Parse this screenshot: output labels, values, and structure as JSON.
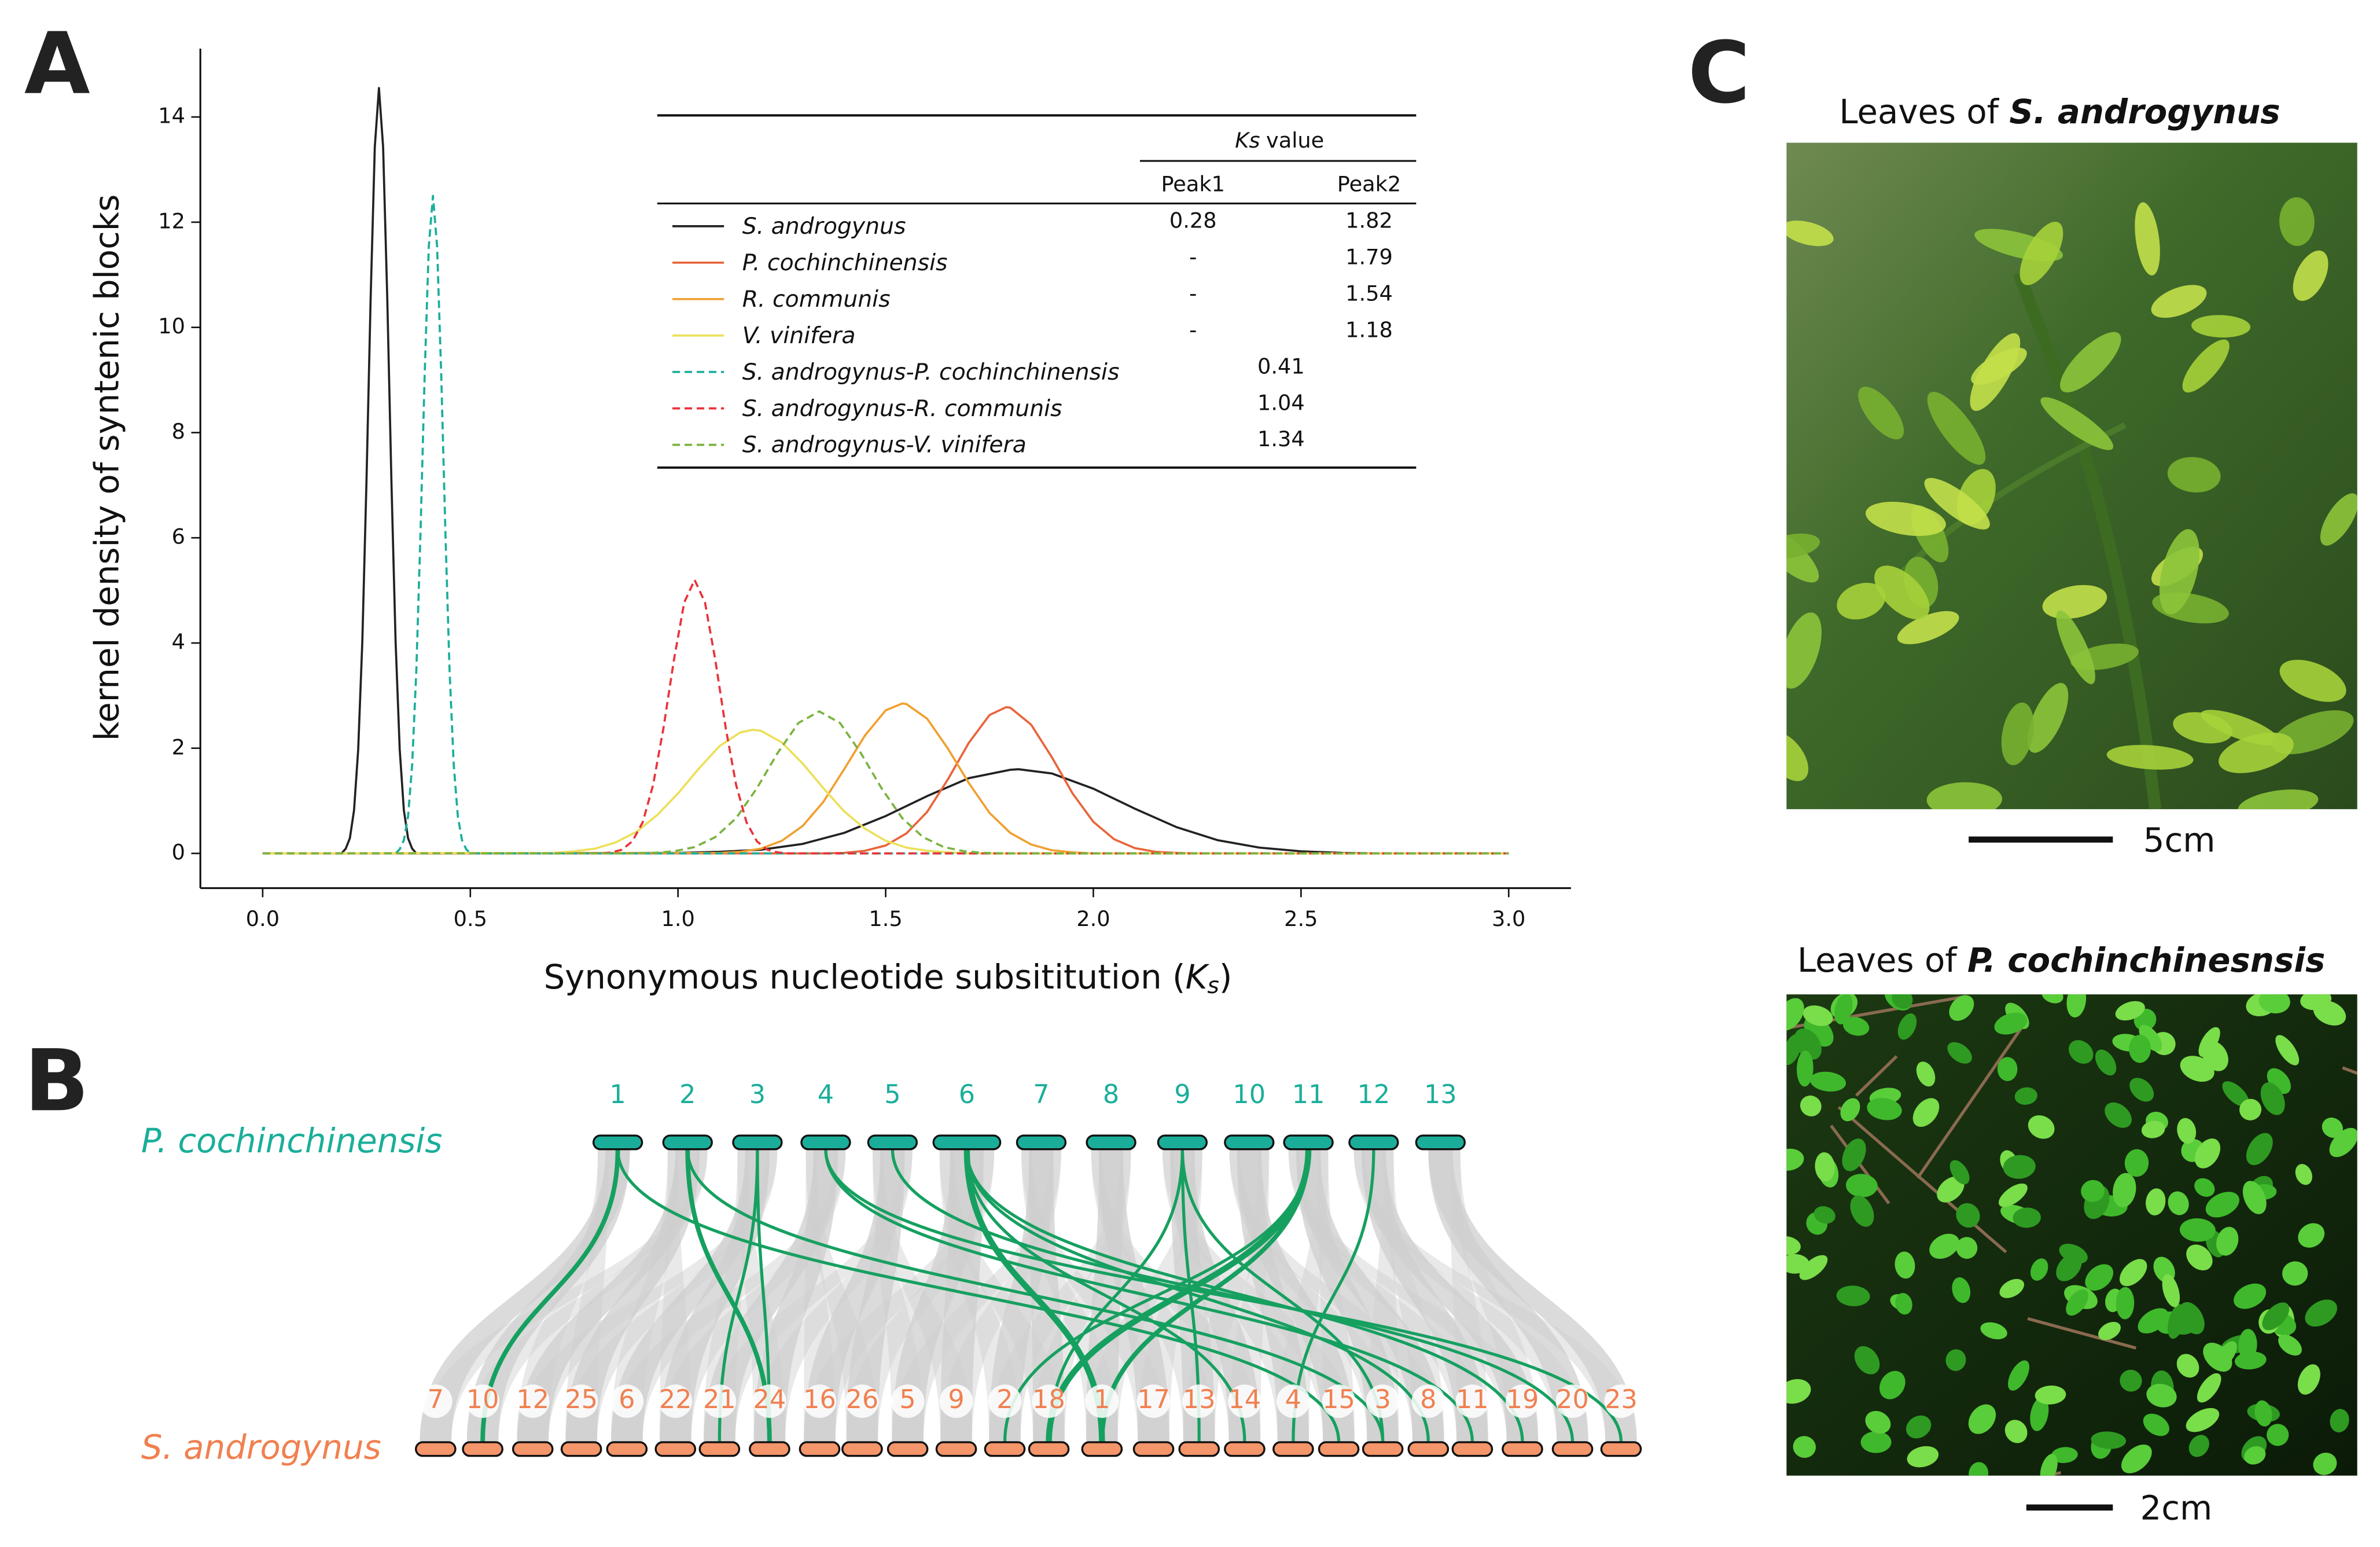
{
  "panels": [
    "A",
    "B",
    "C"
  ],
  "chart_data": {
    "type": "line",
    "y_label": "kernel density of syntenic blocks",
    "x_label": [
      "Synonymous nucleotide subsititution (",
      "K",
      "s",
      ")"
    ],
    "xlim": [
      -0.15,
      3.15
    ],
    "ylim": [
      -0.66,
      15.3
    ],
    "xticks": [
      {
        "value": 0,
        "label": "0.0"
      },
      0.5,
      {
        "value": 1,
        "label": "1.0"
      },
      1.5,
      {
        "value": 2,
        "label": "2.0"
      },
      2.5,
      {
        "value": 3,
        "label": "3.0"
      }
    ],
    "yticks": [
      0,
      2,
      4,
      6,
      8,
      10,
      12,
      14
    ],
    "legend_table": {
      "header": [
        "Ks",
        "value"
      ],
      "columns": [
        "Peak1",
        "Peak2"
      ],
      "rows": [
        [
          0.28,
          1.82
        ],
        [
          "-",
          1.79
        ],
        [
          "-",
          1.54
        ],
        [
          "-",
          1.18
        ],
        [
          0.41
        ],
        [
          1.04
        ],
        [
          1.34
        ]
      ]
    },
    "series": [
      {
        "name": "S. androgynus",
        "color": "#222222",
        "dashed": false,
        "x": [
          0,
          0.19,
          0.2,
          0.21,
          0.22,
          0.23,
          0.24,
          0.25,
          0.26,
          0.27,
          0.28,
          0.29,
          0.3,
          0.31,
          0.32,
          0.33,
          0.34,
          0.35,
          0.36,
          0.37,
          1.0,
          1.1,
          1.2,
          1.3,
          1.4,
          1.5,
          1.6,
          1.7,
          1.8,
          1.82,
          1.9,
          2.0,
          2.1,
          2.2,
          2.3,
          2.4,
          2.5,
          2.6,
          2.7,
          3.0
        ],
        "values": [
          0,
          0,
          0.09,
          0.29,
          0.82,
          1.97,
          4.04,
          7.08,
          10.56,
          13.43,
          14.55,
          13.43,
          10.56,
          7.08,
          4.04,
          1.97,
          0.82,
          0.29,
          0.09,
          0,
          0.01,
          0.03,
          0.07,
          0.18,
          0.39,
          0.71,
          1.09,
          1.43,
          1.59,
          1.6,
          1.52,
          1.23,
          0.85,
          0.5,
          0.25,
          0.11,
          0.04,
          0.01,
          0,
          0
        ]
      },
      {
        "name": "P. cochinchinensis",
        "color": "#e8643a",
        "dashed": false,
        "x": [
          0,
          1.35,
          1.4,
          1.45,
          1.5,
          1.55,
          1.6,
          1.65,
          1.7,
          1.75,
          1.79,
          1.8,
          1.85,
          1.9,
          1.95,
          2.0,
          2.05,
          2.1,
          2.15,
          2.2,
          2.25,
          3.0
        ],
        "values": [
          0,
          0,
          0.01,
          0.05,
          0.15,
          0.38,
          0.79,
          1.41,
          2.1,
          2.63,
          2.78,
          2.77,
          2.45,
          1.83,
          1.14,
          0.6,
          0.27,
          0.1,
          0.03,
          0.01,
          0,
          0
        ]
      },
      {
        "name": "R. communis",
        "color": "#f0a030",
        "dashed": false,
        "x": [
          0,
          1.1,
          1.15,
          1.2,
          1.25,
          1.3,
          1.35,
          1.4,
          1.45,
          1.5,
          1.54,
          1.55,
          1.6,
          1.65,
          1.7,
          1.75,
          1.8,
          1.85,
          1.9,
          1.95,
          2.0,
          3.0
        ],
        "values": [
          0,
          0.01,
          0.03,
          0.09,
          0.24,
          0.52,
          0.98,
          1.6,
          2.24,
          2.72,
          2.85,
          2.84,
          2.56,
          1.99,
          1.34,
          0.77,
          0.39,
          0.17,
          0.06,
          0.02,
          0,
          0
        ]
      },
      {
        "name": "V. vinifera",
        "color": "#ece05a",
        "dashed": false,
        "x": [
          0,
          0.7,
          0.75,
          0.8,
          0.85,
          0.9,
          0.95,
          1.0,
          1.05,
          1.1,
          1.15,
          1.18,
          1.2,
          1.25,
          1.3,
          1.35,
          1.4,
          1.45,
          1.5,
          1.55,
          1.6,
          1.65,
          1.7,
          3.0
        ],
        "values": [
          0,
          0.01,
          0.04,
          0.09,
          0.21,
          0.41,
          0.73,
          1.14,
          1.61,
          2.04,
          2.3,
          2.35,
          2.33,
          2.11,
          1.71,
          1.24,
          0.8,
          0.47,
          0.24,
          0.11,
          0.05,
          0.02,
          0,
          0
        ]
      },
      {
        "name": "S. androgynus-P. cochinchinensis",
        "color": "#1aae9a",
        "dashed": true,
        "x": [
          0,
          0.32,
          0.33,
          0.34,
          0.35,
          0.36,
          0.37,
          0.38,
          0.39,
          0.4,
          0.41,
          0.42,
          0.43,
          0.44,
          0.45,
          0.46,
          0.47,
          0.48,
          0.49,
          0.5,
          3.0
        ],
        "values": [
          0,
          0,
          0.08,
          0.25,
          0.7,
          1.69,
          3.48,
          6.09,
          9.08,
          11.54,
          12.5,
          11.54,
          9.08,
          6.09,
          3.48,
          1.69,
          0.7,
          0.25,
          0.08,
          0,
          0
        ]
      },
      {
        "name": "S. androgynus-R. communis",
        "color": "#e8333a",
        "dashed": true,
        "x": [
          0,
          0.815,
          0.84,
          0.865,
          0.89,
          0.915,
          0.94,
          0.965,
          0.99,
          1.015,
          1.04,
          1.065,
          1.09,
          1.115,
          1.14,
          1.165,
          1.19,
          1.215,
          1.24,
          1.265,
          3.0
        ],
        "values": [
          0,
          0,
          0.02,
          0.07,
          0.23,
          0.59,
          1.3,
          2.38,
          3.67,
          4.77,
          5.2,
          4.77,
          3.67,
          2.38,
          1.3,
          0.59,
          0.23,
          0.07,
          0.02,
          0,
          0
        ]
      },
      {
        "name": "S. androgynus-V. vinifera",
        "color": "#7ab340",
        "dashed": true,
        "x": [
          0,
          0.89,
          0.94,
          0.99,
          1.04,
          1.09,
          1.14,
          1.19,
          1.24,
          1.29,
          1.34,
          1.39,
          1.44,
          1.49,
          1.54,
          1.59,
          1.64,
          1.69,
          1.74,
          1.79,
          3.0
        ],
        "values": [
          0,
          0,
          0.01,
          0.04,
          0.12,
          0.31,
          0.67,
          1.24,
          1.91,
          2.48,
          2.7,
          2.48,
          1.91,
          1.24,
          0.67,
          0.31,
          0.12,
          0.04,
          0.01,
          0,
          0
        ]
      }
    ]
  },
  "diagram": {
    "top_label": "P. cochinchinensis",
    "bottom_label": "S. androgynus",
    "top_chromosomes": [
      "1",
      "2",
      "3",
      "4",
      "5",
      "6",
      "7",
      "8",
      "9",
      "10",
      "11",
      "12",
      "13"
    ],
    "bottom_chromosomes": [
      "7",
      "10",
      "12",
      "25",
      "6",
      "22",
      "21",
      "24",
      "16",
      "26",
      "5",
      "9",
      "2",
      "18",
      "1",
      "17",
      "13",
      "14",
      "4",
      "15",
      "3",
      "8",
      "11",
      "19",
      "20",
      "23"
    ]
  },
  "photos": [
    {
      "title": [
        "Leaves of",
        "S. androgynus"
      ],
      "scale": "5cm"
    },
    {
      "title": [
        "Leaves of",
        "P. cochinchinesnsis"
      ],
      "scale": "2cm"
    }
  ]
}
